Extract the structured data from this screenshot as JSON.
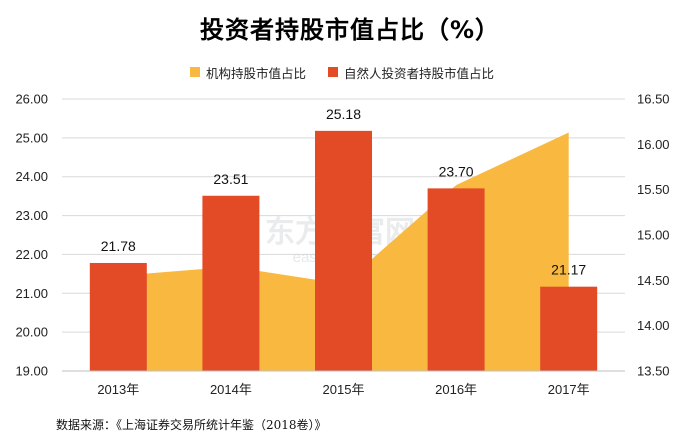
{
  "title": "投资者持股市值占比（%）",
  "legend": [
    {
      "label": "机构持股市值占比",
      "color": "#F9B941"
    },
    {
      "label": "自然人投资者持股市值占比",
      "color": "#E24B26"
    }
  ],
  "source": "数据来源：《上海证券交易所统计年鉴（2018卷）》",
  "watermark": "东方财富网 eastmoney.com",
  "chart_data": {
    "type": "bar",
    "categories": [
      "2013年",
      "2014年",
      "2015年",
      "2016年",
      "2017年"
    ],
    "series": [
      {
        "name": "自然人投资者持股市值占比",
        "type": "bar",
        "axis": "left",
        "color": "#E24B26",
        "values": [
          21.78,
          23.51,
          25.18,
          23.7,
          21.17
        ],
        "labels": [
          "21.78",
          "23.51",
          "25.18",
          "23.70",
          "21.17"
        ]
      },
      {
        "name": "机构持股市值占比",
        "type": "area",
        "axis": "right",
        "color": "#F9B941",
        "values": [
          14.55,
          14.65,
          14.46,
          15.55,
          16.13
        ]
      }
    ],
    "left_axis": {
      "min": 19,
      "max": 26,
      "step": 1,
      "ticks": [
        "19.00",
        "20.00",
        "21.00",
        "22.00",
        "23.00",
        "24.00",
        "25.00",
        "26.00"
      ]
    },
    "right_axis": {
      "min": 13.5,
      "max": 16.5,
      "step": 0.5,
      "ticks": [
        "13.50",
        "14.00",
        "14.50",
        "15.00",
        "15.50",
        "16.00",
        "16.50"
      ]
    },
    "grid": true,
    "legend_position": "top-center"
  }
}
